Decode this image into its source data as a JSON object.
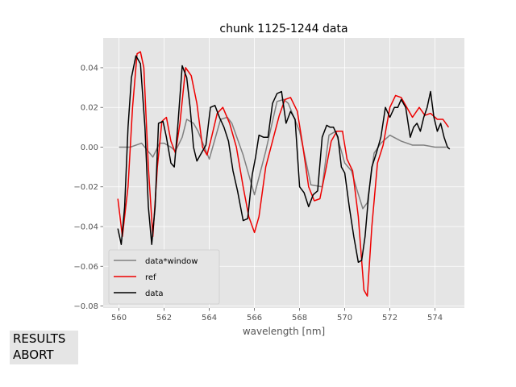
{
  "chart_data": {
    "type": "line",
    "title": "chunk 1125-1244 data",
    "xlabel": "wavelength [nm]",
    "ylabel": "",
    "xlim": [
      559.3,
      575.3
    ],
    "ylim": [
      -0.081,
      0.055
    ],
    "x_ticks": [
      560,
      562,
      564,
      566,
      568,
      570,
      572,
      574
    ],
    "x_tick_labels": [
      "560",
      "562",
      "564",
      "566",
      "568",
      "570",
      "572",
      "574"
    ],
    "y_ticks": [
      -0.08,
      -0.06,
      -0.04,
      -0.02,
      0.0,
      0.02,
      0.04
    ],
    "y_tick_labels": [
      "−0.08",
      "−0.06",
      "−0.04",
      "−0.02",
      "0.00",
      "0.02",
      "0.04"
    ],
    "grid": true,
    "legend_position": "lower-left",
    "series": [
      {
        "name": "data*window",
        "color": "#808080",
        "x": [
          560.0,
          560.5,
          561.0,
          561.5,
          561.8,
          562.0,
          562.3,
          562.5,
          562.8,
          563.0,
          563.3,
          563.5,
          564.0,
          564.5,
          564.8,
          565.0,
          565.5,
          566.0,
          566.5,
          567.0,
          567.3,
          567.5,
          568.0,
          568.5,
          569.0,
          569.3,
          569.6,
          570.0,
          570.3,
          570.5,
          570.8,
          571.0,
          571.3,
          571.6,
          572.0,
          572.5,
          573.0,
          573.5,
          574.0,
          574.5
        ],
        "y": [
          0.0,
          0.0,
          0.002,
          -0.005,
          0.002,
          0.002,
          0.0,
          -0.002,
          0.005,
          0.014,
          0.012,
          0.008,
          -0.006,
          0.014,
          0.015,
          0.012,
          -0.004,
          -0.024,
          -0.002,
          0.023,
          0.024,
          0.022,
          0.008,
          -0.019,
          -0.02,
          0.006,
          0.008,
          -0.008,
          -0.012,
          -0.02,
          -0.031,
          -0.028,
          -0.003,
          0.002,
          0.006,
          0.003,
          0.001,
          0.001,
          0.0,
          0.0
        ]
      },
      {
        "name": "ref",
        "color": "#ee0000",
        "x": [
          559.95,
          560.15,
          560.4,
          560.6,
          560.8,
          560.95,
          561.1,
          561.3,
          561.5,
          561.7,
          561.9,
          562.1,
          562.3,
          562.5,
          562.7,
          562.95,
          563.2,
          563.45,
          563.7,
          563.9,
          564.1,
          564.35,
          564.6,
          564.9,
          565.2,
          565.5,
          565.75,
          566.0,
          566.2,
          566.5,
          566.8,
          567.1,
          567.35,
          567.6,
          567.9,
          568.15,
          568.4,
          568.65,
          568.9,
          569.15,
          569.4,
          569.65,
          569.9,
          570.1,
          570.35,
          570.6,
          570.85,
          571.0,
          571.2,
          571.45,
          571.7,
          572.0,
          572.25,
          572.5,
          572.75,
          573.0,
          573.3,
          573.55,
          573.8,
          574.1,
          574.35,
          574.6
        ],
        "y": [
          -0.026,
          -0.045,
          -0.02,
          0.02,
          0.047,
          0.048,
          0.04,
          -0.01,
          -0.045,
          -0.01,
          0.013,
          0.015,
          0.003,
          -0.003,
          0.012,
          0.04,
          0.036,
          0.022,
          0.0,
          -0.004,
          0.005,
          0.017,
          0.02,
          0.012,
          0.0,
          -0.02,
          -0.035,
          -0.043,
          -0.035,
          -0.01,
          0.003,
          0.016,
          0.024,
          0.025,
          0.018,
          0.0,
          -0.02,
          -0.027,
          -0.026,
          -0.012,
          0.003,
          0.008,
          0.008,
          -0.006,
          -0.012,
          -0.035,
          -0.072,
          -0.075,
          -0.04,
          -0.008,
          0.001,
          0.02,
          0.026,
          0.025,
          0.02,
          0.015,
          0.02,
          0.016,
          0.017,
          0.014,
          0.014,
          0.01
        ]
      },
      {
        "name": "data",
        "color": "#000000",
        "x": [
          559.95,
          560.1,
          560.25,
          560.4,
          560.55,
          560.75,
          560.95,
          561.15,
          561.3,
          561.45,
          561.6,
          561.75,
          561.95,
          562.1,
          562.3,
          562.45,
          562.6,
          562.8,
          563.0,
          563.15,
          563.3,
          563.45,
          563.65,
          563.85,
          564.05,
          564.25,
          564.45,
          564.65,
          564.85,
          565.05,
          565.25,
          565.5,
          565.7,
          565.9,
          566.05,
          566.2,
          566.4,
          566.6,
          566.8,
          567.0,
          567.2,
          567.4,
          567.6,
          567.8,
          568.0,
          568.2,
          568.4,
          568.6,
          568.8,
          569.0,
          569.2,
          569.35,
          569.5,
          569.7,
          569.85,
          570.0,
          570.2,
          570.4,
          570.6,
          570.75,
          570.9,
          571.05,
          571.2,
          571.4,
          571.6,
          571.8,
          572.0,
          572.2,
          572.35,
          572.5,
          572.7,
          572.9,
          573.05,
          573.2,
          573.35,
          573.5,
          573.65,
          573.8,
          573.95,
          574.1,
          574.25,
          574.4,
          574.55,
          574.65
        ],
        "y": [
          -0.041,
          -0.049,
          -0.03,
          0.01,
          0.035,
          0.046,
          0.042,
          0.01,
          -0.03,
          -0.049,
          -0.03,
          0.012,
          0.013,
          0.005,
          -0.008,
          -0.01,
          0.01,
          0.041,
          0.035,
          0.02,
          0.0,
          -0.007,
          -0.003,
          0.001,
          0.02,
          0.021,
          0.015,
          0.01,
          0.003,
          -0.012,
          -0.022,
          -0.037,
          -0.036,
          -0.014,
          -0.005,
          0.006,
          0.005,
          0.005,
          0.022,
          0.027,
          0.028,
          0.012,
          0.018,
          0.014,
          -0.02,
          -0.023,
          -0.03,
          -0.024,
          -0.022,
          0.005,
          0.011,
          0.01,
          0.01,
          0.005,
          -0.01,
          -0.013,
          -0.03,
          -0.045,
          -0.058,
          -0.057,
          -0.045,
          -0.025,
          -0.01,
          -0.003,
          0.005,
          0.02,
          0.015,
          0.02,
          0.02,
          0.024,
          0.02,
          0.005,
          0.01,
          0.012,
          0.008,
          0.015,
          0.02,
          0.028,
          0.015,
          0.008,
          0.012,
          0.005,
          0.0,
          -0.001
        ]
      }
    ]
  },
  "controls": {
    "results_label": "RESULTS",
    "abort_label": "ABORT"
  }
}
